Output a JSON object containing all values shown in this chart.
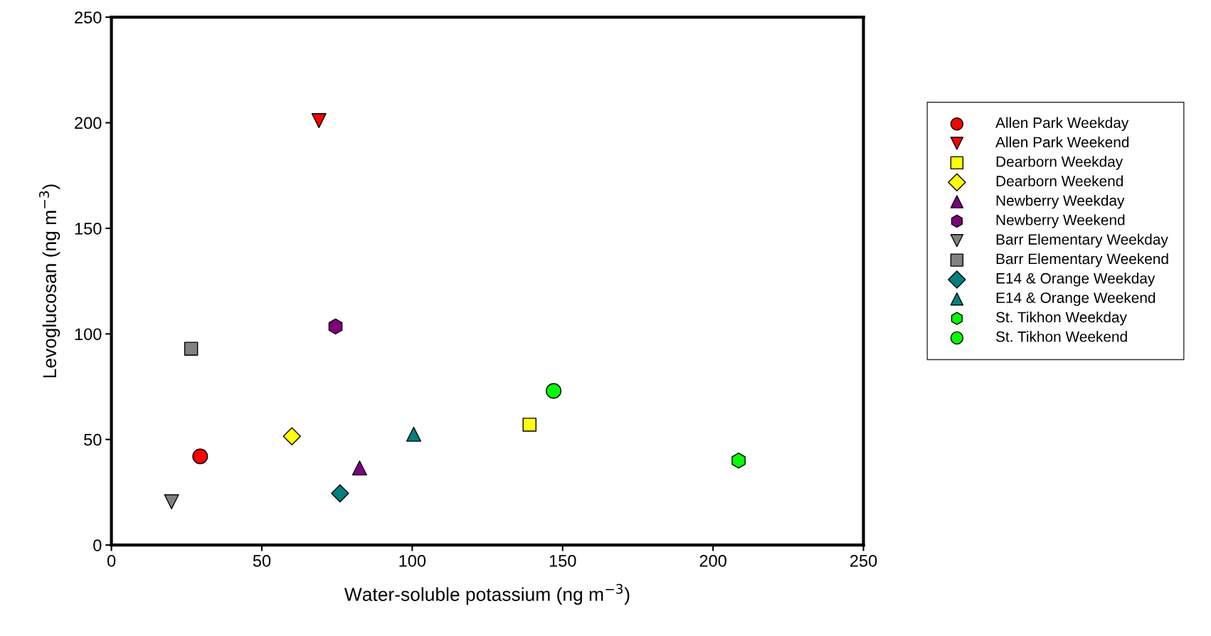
{
  "chart_data": {
    "type": "scatter",
    "xlabel": "Water-soluble potassium (ng m$^{−3}$)",
    "ylabel": "Levoglucosan (ng m$^{−3}$)",
    "xlim": [
      0,
      250
    ],
    "ylim": [
      0,
      250
    ],
    "xticks": [
      0,
      50,
      100,
      150,
      200,
      250
    ],
    "yticks": [
      0,
      50,
      100,
      150,
      200,
      250
    ],
    "grid": false,
    "legend": "right",
    "series": [
      {
        "name": "Allen Park Weekday",
        "color": "#ff0000",
        "marker": "circle",
        "x": [
          29.5
        ],
        "values": [
          42
        ]
      },
      {
        "name": "Allen Park Weekend",
        "color": "#ff0000",
        "marker": "triangle_down",
        "x": [
          69
        ],
        "values": [
          201
        ]
      },
      {
        "name": "Dearborn Weekday",
        "color": "#ffff00",
        "marker": "square",
        "x": [
          139
        ],
        "values": [
          57
        ]
      },
      {
        "name": "Dearborn Weekend",
        "color": "#ffff00",
        "marker": "diamond",
        "x": [
          60
        ],
        "values": [
          51.5
        ]
      },
      {
        "name": "Newberry Weekday",
        "color": "#800080",
        "marker": "triangle",
        "x": [
          82.5
        ],
        "values": [
          36.5
        ]
      },
      {
        "name": "Newberry Weekend",
        "color": "#800080",
        "x": [
          74.5
        ],
        "values": [
          103.5
        ]
      },
      {
        "name": "Barr Elementary Weekday",
        "color": "#808080",
        "marker": "triangle_down",
        "x": [
          20
        ],
        "values": [
          20.5
        ]
      },
      {
        "name": "Barr Elementary Weekend",
        "color": "#808080",
        "marker": "square",
        "x": [
          26.5
        ],
        "values": [
          93
        ]
      },
      {
        "name": "E14 & Orange Weekday",
        "color": "#008080",
        "marker": "diamond",
        "x": [
          76
        ],
        "values": [
          24.5
        ]
      },
      {
        "name": "E14 & Orange Weekend",
        "color": "#008080",
        "marker": "triangle",
        "x": [
          100.5
        ],
        "values": [
          52.5
        ]
      },
      {
        "name": "St. Tikhon Weekday",
        "color": "#00ff00",
        "x": [
          208.5
        ],
        "values": [
          40
        ]
      },
      {
        "name": "St. Tikhon Weekend",
        "color": "#00ff00",
        "marker": "circle",
        "x": [
          147
        ],
        "values": [
          73
        ]
      }
    ]
  }
}
